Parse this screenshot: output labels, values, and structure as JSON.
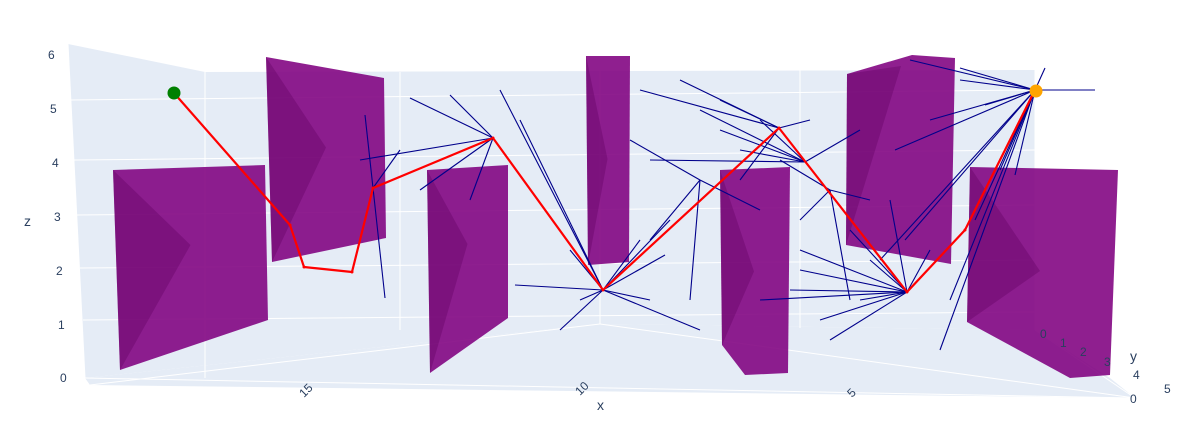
{
  "chart_data": {
    "type": "scatter3d",
    "title": "",
    "axes": {
      "x": {
        "title": "x",
        "ticks": [
          "15",
          "10",
          "5",
          "0"
        ]
      },
      "y": {
        "title": "y",
        "ticks": [
          "0",
          "1",
          "2",
          "3",
          "4",
          "5"
        ]
      },
      "z": {
        "title": "z",
        "ticks": [
          "0",
          "1",
          "2",
          "3",
          "4",
          "5",
          "6"
        ]
      }
    },
    "colors": {
      "background": "#e5ecf6",
      "grid": "#ffffff",
      "obstacle": "#800080",
      "path": "#ff0000",
      "tree": "#00008b",
      "start": "#008000",
      "goal": "#ffa500"
    },
    "markers": [
      {
        "name": "start",
        "color": "#008000"
      },
      {
        "name": "goal",
        "color": "#ffa500"
      }
    ],
    "obstacles_count": 8,
    "path_nodes_count": 13
  }
}
